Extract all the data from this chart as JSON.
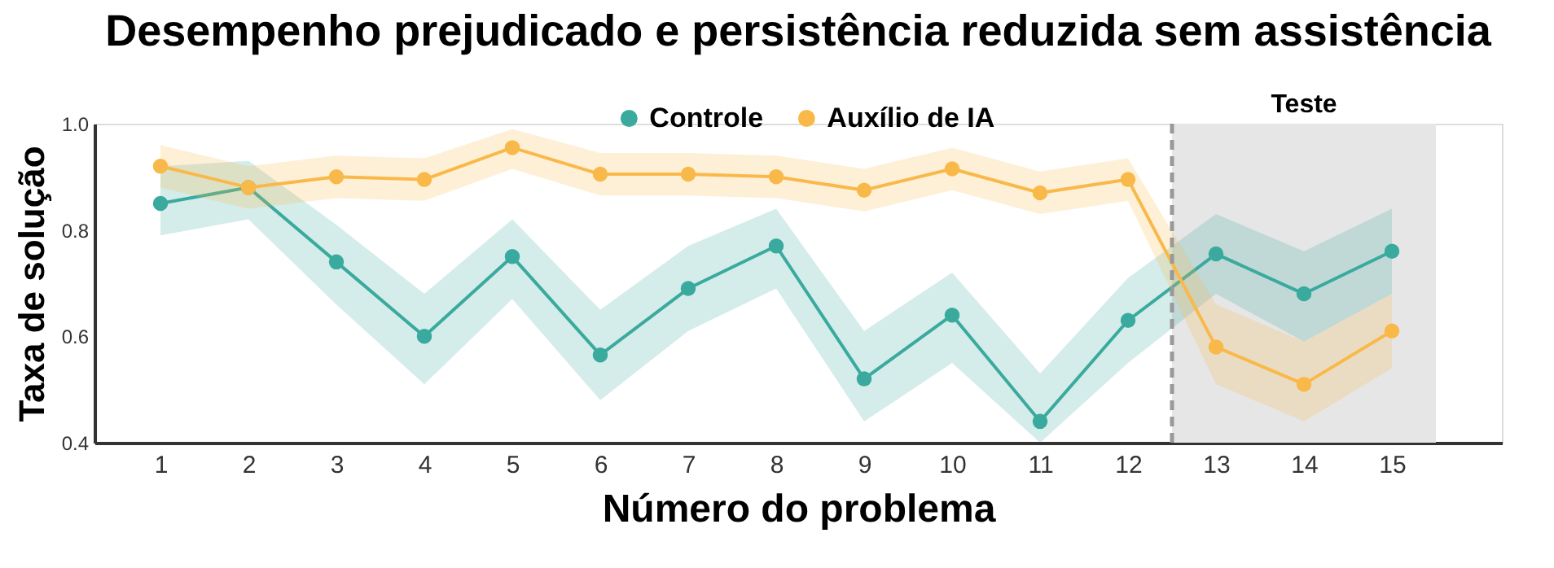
{
  "chart_data": {
    "type": "line",
    "title": "Desempenho prejudicado e persistência reduzida sem assistência",
    "xlabel": "Número do problema",
    "ylabel": "Taxa de solução",
    "x": [
      1,
      2,
      3,
      4,
      5,
      6,
      7,
      8,
      9,
      10,
      11,
      12,
      13,
      14,
      15
    ],
    "series": [
      {
        "name": "Controle",
        "color": "#3aaa9e",
        "values": [
          0.85,
          0.88,
          0.74,
          0.6,
          0.75,
          0.565,
          0.69,
          0.77,
          0.52,
          0.64,
          0.44,
          0.63,
          0.755,
          0.68,
          0.76
        ],
        "lower": [
          0.79,
          0.82,
          0.66,
          0.51,
          0.67,
          0.48,
          0.61,
          0.69,
          0.44,
          0.55,
          0.4,
          0.55,
          0.68,
          0.59,
          0.68
        ],
        "upper": [
          0.92,
          0.93,
          0.81,
          0.68,
          0.82,
          0.65,
          0.77,
          0.84,
          0.61,
          0.72,
          0.53,
          0.71,
          0.83,
          0.76,
          0.84
        ]
      },
      {
        "name": "Auxílio de IA",
        "color": "#f9b94a",
        "values": [
          0.92,
          0.88,
          0.9,
          0.895,
          0.955,
          0.905,
          0.905,
          0.9,
          0.875,
          0.915,
          0.87,
          0.895,
          0.58,
          0.51,
          0.61
        ],
        "lower": [
          0.88,
          0.84,
          0.86,
          0.855,
          0.915,
          0.865,
          0.865,
          0.86,
          0.835,
          0.875,
          0.83,
          0.855,
          0.51,
          0.44,
          0.54
        ],
        "upper": [
          0.96,
          0.92,
          0.94,
          0.935,
          0.99,
          0.945,
          0.945,
          0.94,
          0.915,
          0.955,
          0.91,
          0.935,
          0.66,
          0.59,
          0.68
        ]
      }
    ],
    "xlim": [
      0.25,
      16.25
    ],
    "xticks": [
      1,
      2,
      3,
      4,
      5,
      6,
      7,
      8,
      9,
      10,
      11,
      12,
      13,
      14,
      15
    ],
    "ylim": [
      0.4,
      1.0
    ],
    "yticks": [
      {
        "value": 0.4,
        "label": "0.4"
      },
      {
        "value": 0.6,
        "label": "0.6"
      },
      {
        "value": 0.8,
        "label": "0.8"
      },
      {
        "value": 1.0,
        "label": "1.0"
      }
    ],
    "ref_lines": [
      {
        "axis": "x",
        "value": 12.5,
        "color": "#999999",
        "line_style": "dashed"
      }
    ],
    "bands": [
      {
        "axis": "x",
        "from": 12.5,
        "to": 15.5,
        "label": "Teste",
        "color": "#e6e6e6"
      }
    ],
    "legend": "top",
    "marker": "circle",
    "line_style": "solid",
    "grid": false
  }
}
